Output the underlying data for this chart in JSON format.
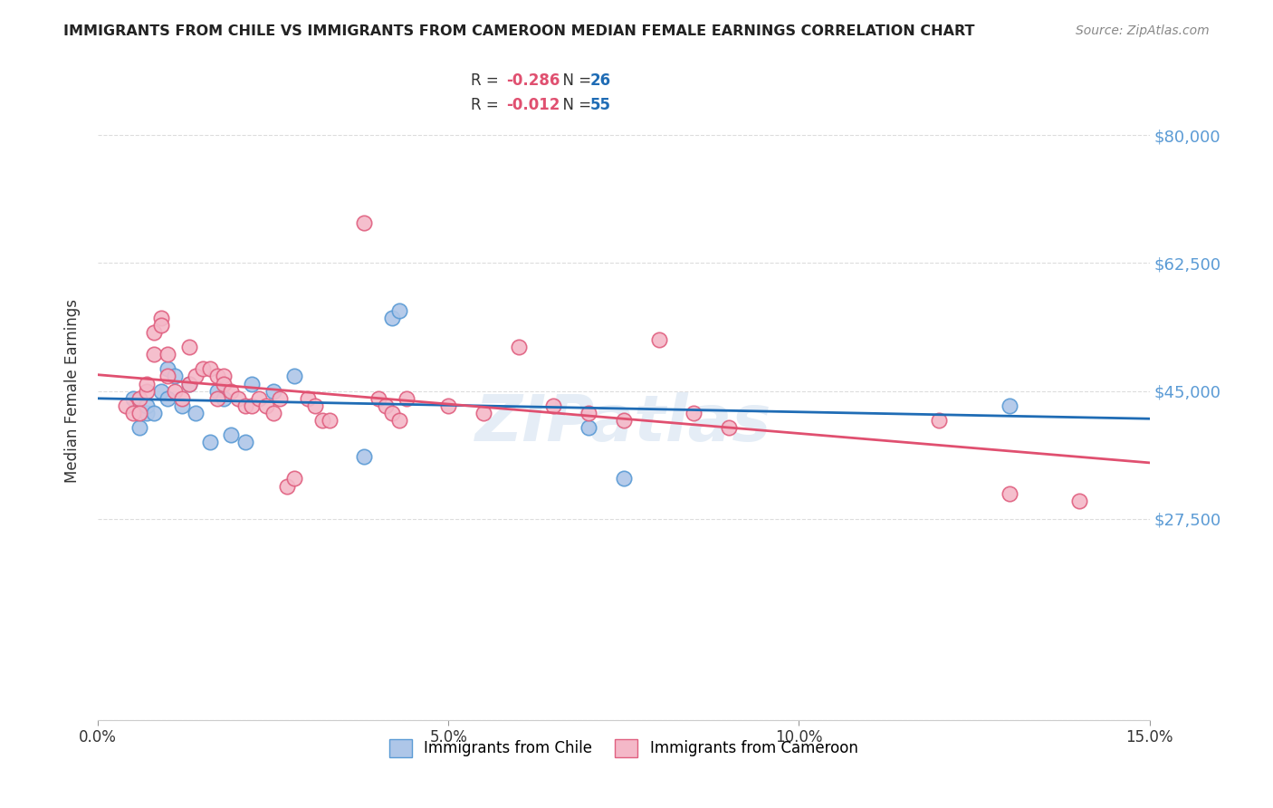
{
  "title": "IMMIGRANTS FROM CHILE VS IMMIGRANTS FROM CAMEROON MEDIAN FEMALE EARNINGS CORRELATION CHART",
  "source": "Source: ZipAtlas.com",
  "xlabel": "",
  "ylabel": "Median Female Earnings",
  "xlim": [
    0.0,
    0.15
  ],
  "ylim": [
    0,
    90000
  ],
  "yticks": [
    0,
    27500,
    45000,
    62500,
    80000
  ],
  "xticks": [
    0.0,
    0.05,
    0.1,
    0.15
  ],
  "xtick_labels": [
    "0.0%",
    "5.0%",
    "10.0%",
    "15.0%"
  ],
  "background_color": "#ffffff",
  "watermark": "ZIPatlas",
  "chile_color": "#aec6e8",
  "chile_edge_color": "#5b9bd5",
  "cameroon_color": "#f4b8c8",
  "cameroon_edge_color": "#e06080",
  "chile_R": -0.286,
  "chile_N": 26,
  "cameroon_R": -0.012,
  "cameroon_N": 55,
  "chile_scatter_x": [
    0.005,
    0.006,
    0.007,
    0.007,
    0.008,
    0.009,
    0.01,
    0.01,
    0.011,
    0.012,
    0.013,
    0.014,
    0.016,
    0.017,
    0.018,
    0.019,
    0.021,
    0.022,
    0.025,
    0.028,
    0.038,
    0.042,
    0.043,
    0.07,
    0.075,
    0.13
  ],
  "chile_scatter_y": [
    44000,
    40000,
    42000,
    43000,
    42000,
    45000,
    44000,
    48000,
    47000,
    43000,
    46000,
    42000,
    38000,
    45000,
    44000,
    39000,
    38000,
    46000,
    45000,
    47000,
    36000,
    55000,
    56000,
    40000,
    33000,
    43000
  ],
  "cameroon_scatter_x": [
    0.004,
    0.005,
    0.006,
    0.006,
    0.007,
    0.007,
    0.008,
    0.008,
    0.009,
    0.009,
    0.01,
    0.01,
    0.011,
    0.012,
    0.013,
    0.013,
    0.014,
    0.015,
    0.016,
    0.017,
    0.017,
    0.018,
    0.018,
    0.019,
    0.02,
    0.021,
    0.022,
    0.023,
    0.024,
    0.025,
    0.026,
    0.027,
    0.028,
    0.03,
    0.031,
    0.032,
    0.033,
    0.038,
    0.04,
    0.041,
    0.042,
    0.043,
    0.044,
    0.05,
    0.055,
    0.06,
    0.065,
    0.07,
    0.075,
    0.08,
    0.085,
    0.09,
    0.12,
    0.13,
    0.14
  ],
  "cameroon_scatter_y": [
    43000,
    42000,
    44000,
    42000,
    45000,
    46000,
    50000,
    53000,
    55000,
    54000,
    47000,
    50000,
    45000,
    44000,
    46000,
    51000,
    47000,
    48000,
    48000,
    44000,
    47000,
    47000,
    46000,
    45000,
    44000,
    43000,
    43000,
    44000,
    43000,
    42000,
    44000,
    32000,
    33000,
    44000,
    43000,
    41000,
    41000,
    68000,
    44000,
    43000,
    42000,
    41000,
    44000,
    43000,
    42000,
    51000,
    43000,
    42000,
    41000,
    52000,
    42000,
    40000,
    41000,
    31000,
    30000
  ],
  "grid_color": "#dddddd",
  "trend_blue": "#1f6cb5",
  "trend_pink": "#e05070"
}
